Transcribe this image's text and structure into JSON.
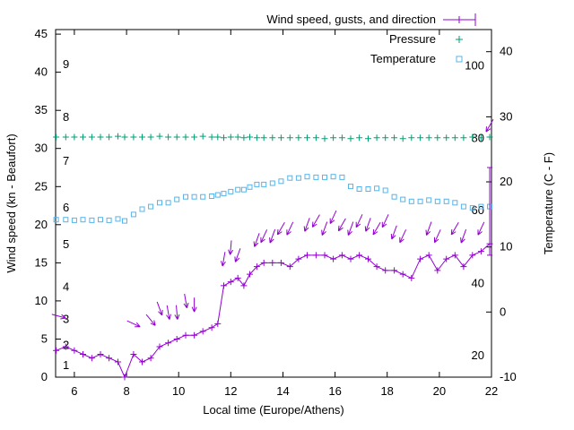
{
  "chart_data": {
    "type": "line",
    "title": "",
    "xlabel": "Local time (Europe/Athens)",
    "ylabel_left": "Wind speed (kn - Beaufort)",
    "ylabel_right": "Temperature (C - F)",
    "x_range": [
      5.28,
      22
    ],
    "y_left_range": [
      0,
      45.6
    ],
    "y_right_range": [
      -10,
      43.4
    ],
    "x_ticks": [
      6,
      8,
      10,
      12,
      14,
      16,
      18,
      20,
      22
    ],
    "y_left_ticks": [
      0,
      5,
      10,
      15,
      20,
      25,
      30,
      35,
      40,
      45
    ],
    "y_right_ticks": [
      -10,
      0,
      10,
      20,
      30,
      40
    ],
    "grid": "off",
    "legend_position": "top-right-inside",
    "beaufort_scale": [
      {
        "label": "1",
        "kn": 1.5
      },
      {
        "label": "2",
        "kn": 4.2
      },
      {
        "label": "3",
        "kn": 7.6
      },
      {
        "label": "4",
        "kn": 11.8
      },
      {
        "label": "5",
        "kn": 17.4
      },
      {
        "label": "6",
        "kn": 22.2
      },
      {
        "label": "7",
        "kn": 28.3
      },
      {
        "label": "8",
        "kn": 34.1
      },
      {
        "label": "9",
        "kn": 41.0
      }
    ],
    "fahrenheit_scale": [
      {
        "label": "20",
        "c": -6.7
      },
      {
        "label": "40",
        "c": 4.4
      },
      {
        "label": "60",
        "c": 15.6
      },
      {
        "label": "80",
        "c": 26.7
      },
      {
        "label": "100",
        "c": 37.8
      }
    ],
    "legend": [
      {
        "label": "Wind speed, gusts, and direction",
        "series": "wind"
      },
      {
        "label": "Pressure",
        "series": "pressure"
      },
      {
        "label": "Temperature",
        "series": "temperature"
      }
    ],
    "colors": {
      "wind": "#9400d3",
      "pressure": "#009e73",
      "temperature": "#56b4e9",
      "axis": "#000000",
      "background": "#ffffff"
    },
    "series": {
      "wind": {
        "unit": "kn",
        "x": [
          5.3,
          5.67,
          6.0,
          6.33,
          6.67,
          7.0,
          7.33,
          7.67,
          7.93,
          8.27,
          8.6,
          8.93,
          9.27,
          9.6,
          9.93,
          10.27,
          10.6,
          10.93,
          11.27,
          11.5,
          11.73,
          12.0,
          12.27,
          12.5,
          12.73,
          13.0,
          13.27,
          13.6,
          13.93,
          14.27,
          14.6,
          14.93,
          15.27,
          15.6,
          15.93,
          16.27,
          16.6,
          16.93,
          17.27,
          17.6,
          17.93,
          18.27,
          18.6,
          18.93,
          19.27,
          19.6,
          19.93,
          20.27,
          20.6,
          20.93,
          21.27,
          21.6,
          21.93
        ],
        "y": [
          3.5,
          4,
          3.5,
          3,
          2.5,
          3,
          2.5,
          2,
          0,
          3,
          2,
          2.5,
          4,
          4.5,
          5,
          5.5,
          5.5,
          6,
          6.5,
          7,
          12,
          12.5,
          13,
          12,
          13.5,
          14.5,
          15,
          15,
          15,
          14.5,
          15.5,
          16,
          16,
          16,
          15.5,
          16,
          15.5,
          16,
          15.5,
          14.5,
          14,
          14,
          13.5,
          13,
          15.5,
          16,
          14,
          15.5,
          16,
          14.5,
          16,
          16.5,
          17.5
        ]
      },
      "gust_bar": {
        "x": 21.93,
        "from": 16,
        "to": 27.5
      },
      "direction_arrows": [
        {
          "x": 5.4,
          "y": 8,
          "dir": 105
        },
        {
          "x": 8.27,
          "y": 7,
          "dir": 115
        },
        {
          "x": 8.93,
          "y": 7.5,
          "dir": 140
        },
        {
          "x": 9.27,
          "y": 9,
          "dir": 160
        },
        {
          "x": 9.6,
          "y": 8.5,
          "dir": 170
        },
        {
          "x": 9.93,
          "y": 8.5,
          "dir": 175
        },
        {
          "x": 10.27,
          "y": 10,
          "dir": 170
        },
        {
          "x": 10.6,
          "y": 9.5,
          "dir": 180
        },
        {
          "x": 11.73,
          "y": 15.5,
          "dir": 190
        },
        {
          "x": 12.0,
          "y": 17,
          "dir": 185
        },
        {
          "x": 12.27,
          "y": 16,
          "dir": 200
        },
        {
          "x": 13.0,
          "y": 18,
          "dir": 200
        },
        {
          "x": 13.27,
          "y": 18.5,
          "dir": 205
        },
        {
          "x": 13.6,
          "y": 18.5,
          "dir": 200
        },
        {
          "x": 13.93,
          "y": 19.5,
          "dir": 210
        },
        {
          "x": 14.27,
          "y": 19.5,
          "dir": 205
        },
        {
          "x": 14.93,
          "y": 20,
          "dir": 200
        },
        {
          "x": 15.27,
          "y": 20.5,
          "dir": 210
        },
        {
          "x": 15.6,
          "y": 19.5,
          "dir": 200
        },
        {
          "x": 15.93,
          "y": 21,
          "dir": 205
        },
        {
          "x": 16.27,
          "y": 20,
          "dir": 210
        },
        {
          "x": 16.6,
          "y": 19.5,
          "dir": 200
        },
        {
          "x": 16.93,
          "y": 20.5,
          "dir": 205
        },
        {
          "x": 17.27,
          "y": 20,
          "dir": 200
        },
        {
          "x": 17.6,
          "y": 19.5,
          "dir": 210
        },
        {
          "x": 17.93,
          "y": 20.5,
          "dir": 205
        },
        {
          "x": 18.27,
          "y": 19,
          "dir": 200
        },
        {
          "x": 18.6,
          "y": 18.5,
          "dir": 205
        },
        {
          "x": 19.6,
          "y": 19.5,
          "dir": 200
        },
        {
          "x": 19.93,
          "y": 18.5,
          "dir": 205
        },
        {
          "x": 20.6,
          "y": 19.5,
          "dir": 210
        },
        {
          "x": 20.93,
          "y": 18.5,
          "dir": 200
        },
        {
          "x": 21.6,
          "y": 19.5,
          "dir": 205
        },
        {
          "x": 21.93,
          "y": 33,
          "dir": 210
        }
      ],
      "pressure": {
        "plotted_on": "left-axis",
        "x": [
          5.3,
          5.67,
          6.0,
          6.33,
          6.67,
          7.0,
          7.33,
          7.67,
          7.93,
          8.27,
          8.6,
          8.93,
          9.27,
          9.6,
          9.93,
          10.27,
          10.6,
          10.93,
          11.27,
          11.5,
          11.73,
          12.0,
          12.27,
          12.5,
          12.73,
          13.0,
          13.27,
          13.6,
          13.93,
          14.27,
          14.6,
          14.93,
          15.27,
          15.6,
          15.93,
          16.27,
          16.6,
          16.93,
          17.27,
          17.6,
          17.93,
          18.27,
          18.6,
          18.93,
          19.27,
          19.6,
          19.93,
          20.27,
          20.6,
          20.93,
          21.27,
          21.6,
          21.93
        ],
        "y": [
          31.5,
          31.5,
          31.5,
          31.5,
          31.5,
          31.5,
          31.5,
          31.6,
          31.5,
          31.5,
          31.5,
          31.5,
          31.6,
          31.5,
          31.5,
          31.5,
          31.5,
          31.6,
          31.5,
          31.5,
          31.4,
          31.5,
          31.5,
          31.4,
          31.5,
          31.4,
          31.4,
          31.4,
          31.4,
          31.4,
          31.4,
          31.4,
          31.4,
          31.3,
          31.4,
          31.4,
          31.3,
          31.4,
          31.3,
          31.4,
          31.4,
          31.4,
          31.3,
          31.4,
          31.4,
          31.4,
          31.4,
          31.4,
          31.4,
          31.4,
          31.5,
          31.4,
          31.5
        ]
      },
      "temperature": {
        "unit": "C",
        "x": [
          5.3,
          5.67,
          6.0,
          6.33,
          6.67,
          7.0,
          7.33,
          7.67,
          7.93,
          8.27,
          8.6,
          8.93,
          9.27,
          9.6,
          9.93,
          10.27,
          10.6,
          10.93,
          11.27,
          11.5,
          11.73,
          12.0,
          12.27,
          12.5,
          12.73,
          13.0,
          13.27,
          13.6,
          13.93,
          14.27,
          14.6,
          14.93,
          15.27,
          15.6,
          15.93,
          16.27,
          16.6,
          16.93,
          17.27,
          17.6,
          17.93,
          18.27,
          18.6,
          18.93,
          19.27,
          19.6,
          19.93,
          20.27,
          20.6,
          20.93,
          21.27,
          21.6,
          21.93
        ],
        "y_c": [
          14.2,
          14.2,
          14.1,
          14.2,
          14.1,
          14.2,
          14.1,
          14.3,
          14.0,
          15.0,
          15.8,
          16.2,
          16.8,
          16.8,
          17.3,
          17.7,
          17.7,
          17.7,
          17.8,
          18.0,
          18.2,
          18.5,
          18.8,
          18.8,
          19.2,
          19.6,
          19.6,
          19.8,
          20.1,
          20.6,
          20.6,
          20.8,
          20.7,
          20.7,
          20.8,
          20.7,
          19.3,
          18.9,
          18.9,
          19.0,
          18.7,
          17.7,
          17.3,
          17.0,
          17.0,
          17.2,
          17.0,
          17.0,
          16.8,
          16.2,
          16.0,
          16.2,
          16.2
        ]
      }
    }
  }
}
